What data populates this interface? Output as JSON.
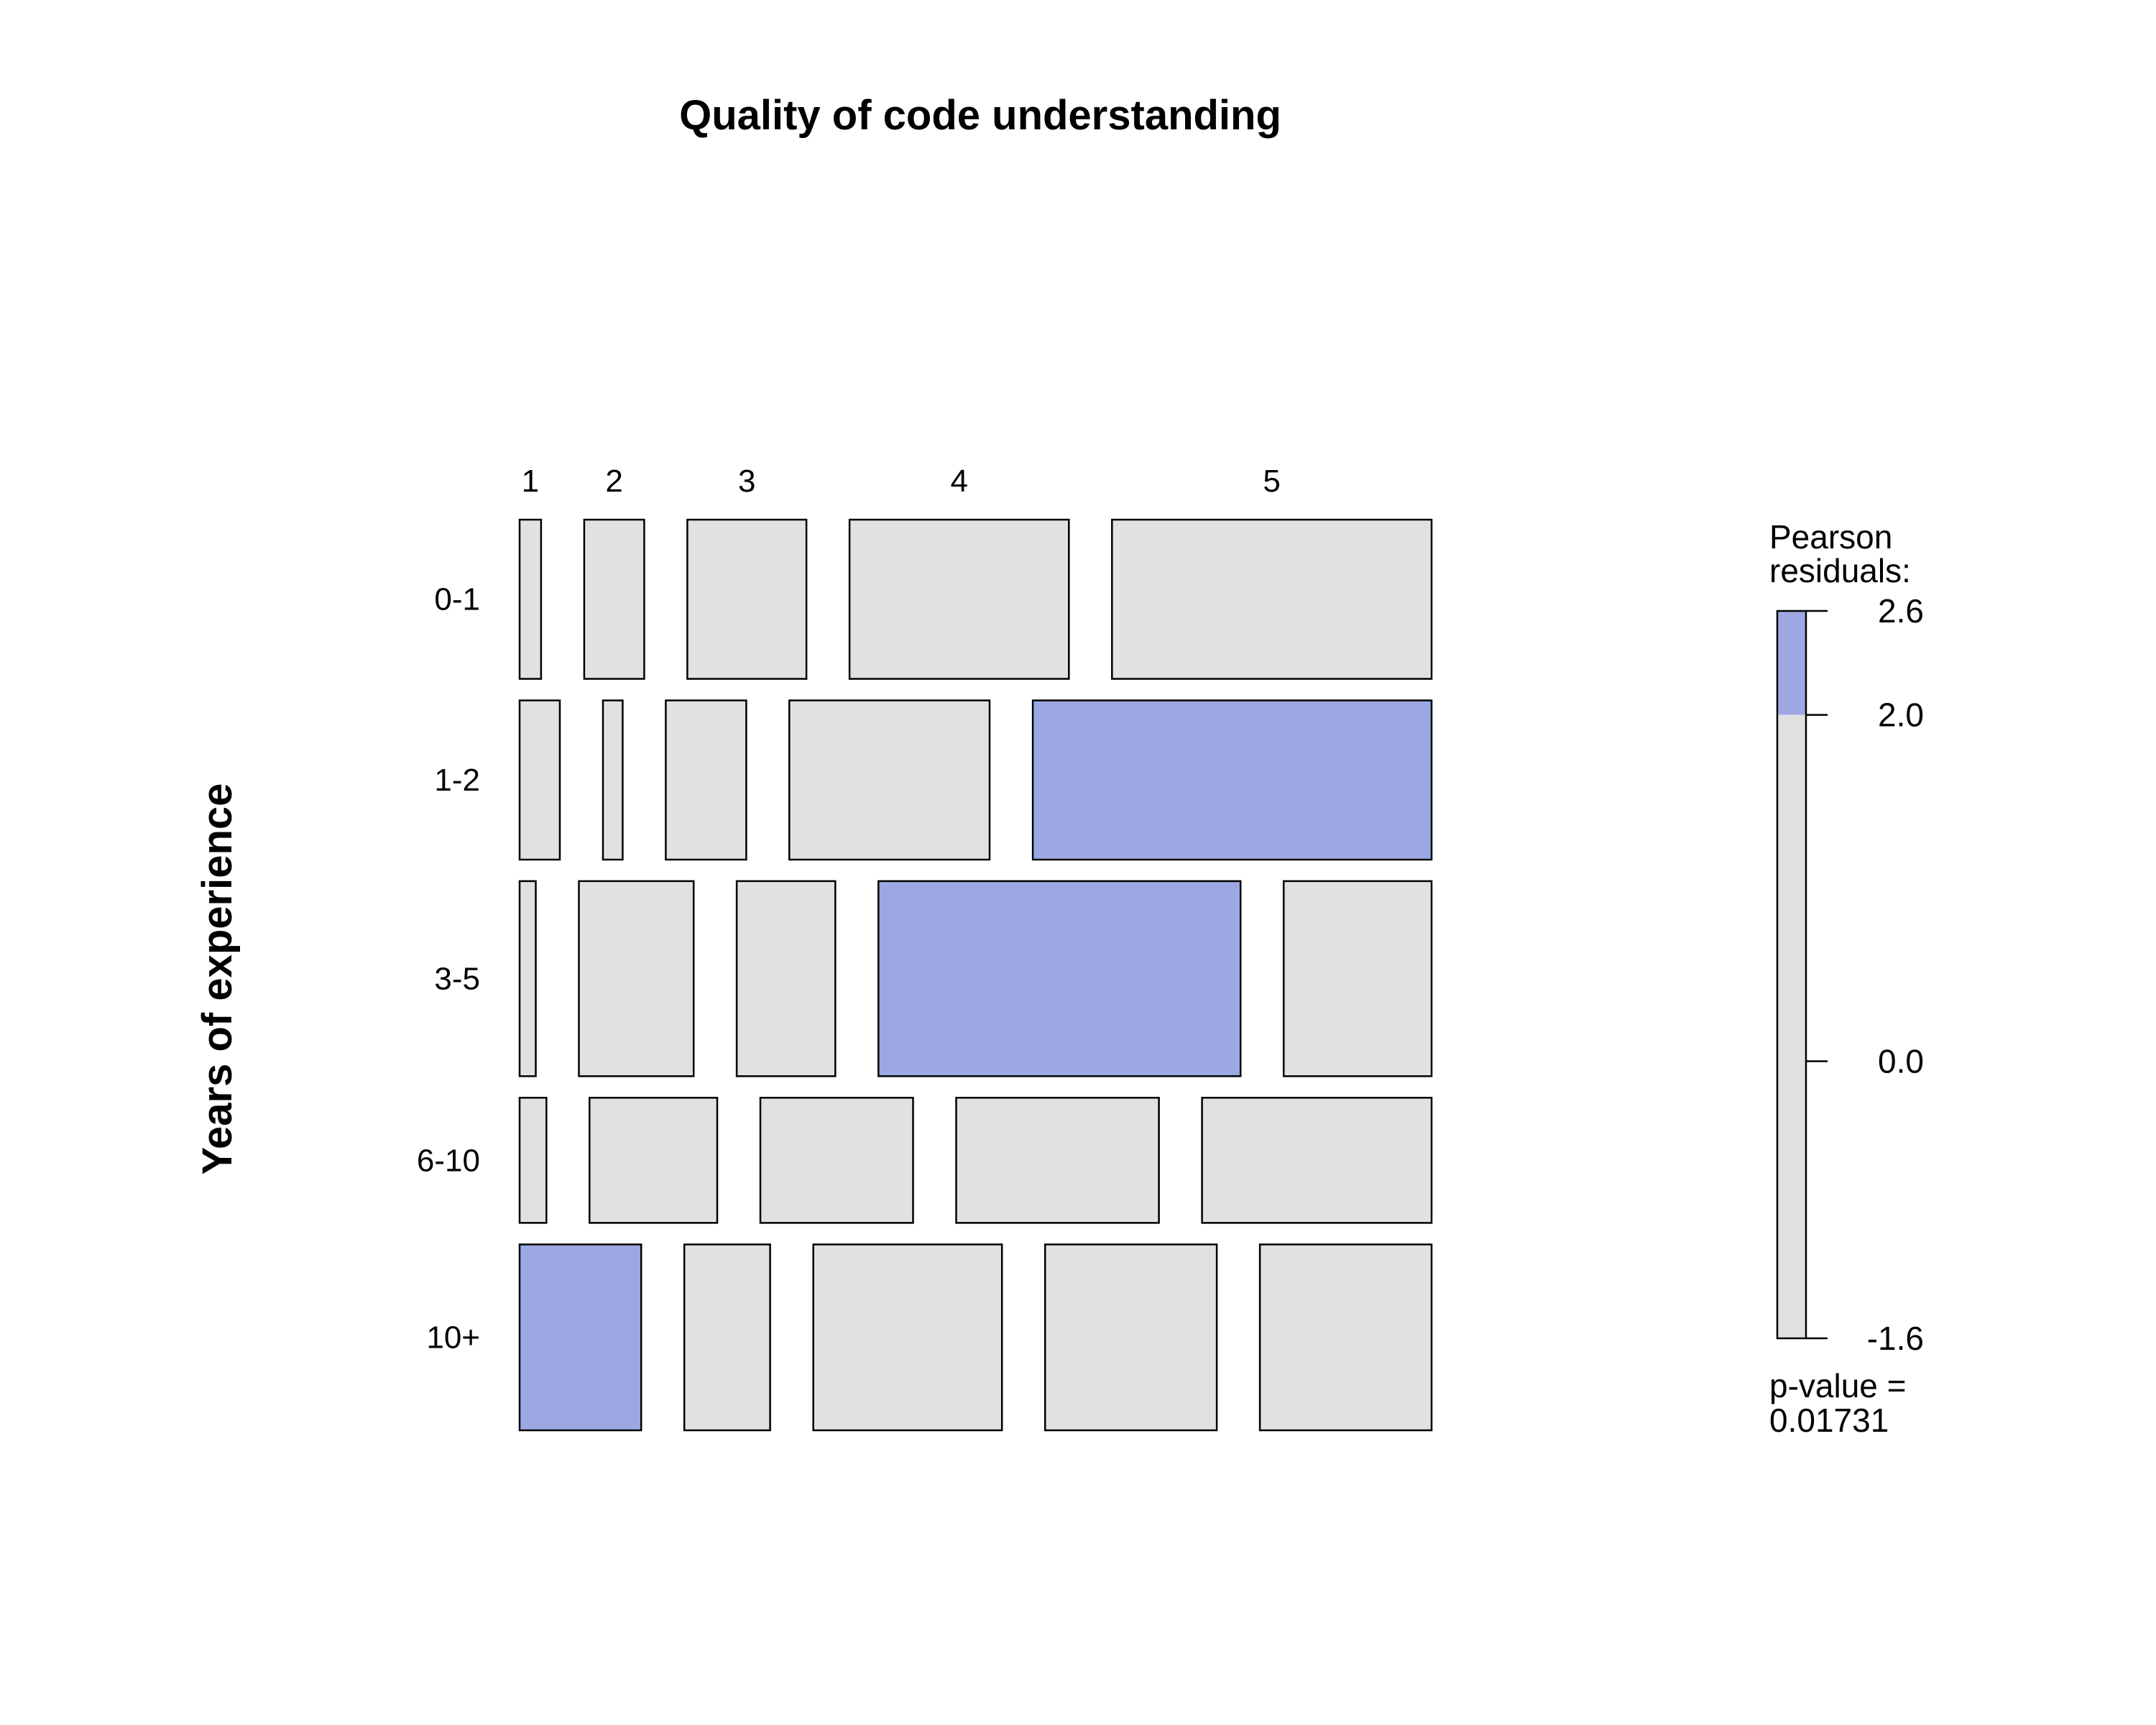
{
  "chart_data": {
    "type": "mosaic",
    "title": "Quality of code understanding",
    "xlabel": "",
    "ylabel": "Years of experience",
    "column_categories": [
      "1",
      "2",
      "3",
      "4",
      "5"
    ],
    "row_categories": [
      "0-1",
      "1-2",
      "3-5",
      "6-10",
      "10+"
    ],
    "row_proportions": [
      0.173,
      0.173,
      0.212,
      0.136,
      0.202
    ],
    "cell_proportions": [
      [
        0.024,
        0.067,
        0.133,
        0.245,
        0.357
      ],
      [
        0.045,
        0.022,
        0.09,
        0.224,
        0.446
      ],
      [
        0.018,
        0.128,
        0.11,
        0.404,
        0.165
      ],
      [
        0.03,
        0.143,
        0.171,
        0.227,
        0.257
      ],
      [
        0.136,
        0.096,
        0.211,
        0.192,
        0.192
      ]
    ],
    "residual_shading": [
      [
        "neutral",
        "neutral",
        "neutral",
        "neutral",
        "neutral"
      ],
      [
        "neutral",
        "neutral",
        "neutral",
        "neutral",
        "positive"
      ],
      [
        "neutral",
        "neutral",
        "neutral",
        "positive",
        "neutral"
      ],
      [
        "neutral",
        "neutral",
        "neutral",
        "neutral",
        "neutral"
      ],
      [
        "positive",
        "neutral",
        "neutral",
        "neutral",
        "neutral"
      ]
    ],
    "colors": {
      "neutral": "#e1e1e1",
      "positive": "#9da8e2",
      "border": "#000000"
    },
    "legend": {
      "title_line1": "Pearson",
      "title_line2": "residuals:",
      "ticks": [
        "2.6",
        "2.0",
        "0.0",
        "-1.6"
      ],
      "tick_values": [
        2.6,
        2.0,
        0.0,
        -1.6
      ],
      "range": [
        -1.6,
        2.6
      ],
      "shade_threshold": 2.0,
      "placement": "right",
      "pvalue_line1": "p-value =",
      "pvalue_line2": "0.01731"
    }
  }
}
